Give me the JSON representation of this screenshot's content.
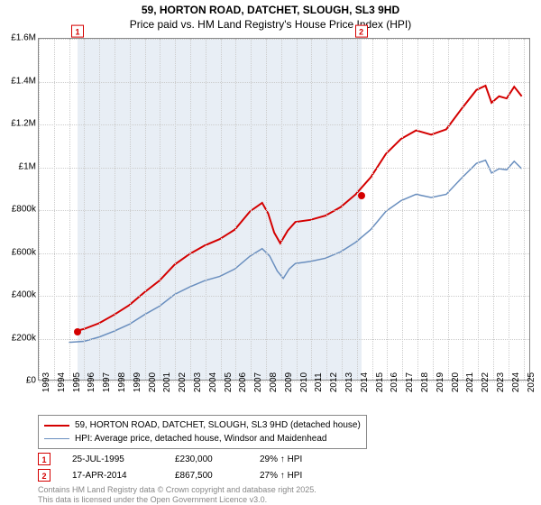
{
  "title": "59, HORTON ROAD, DATCHET, SLOUGH, SL3 9HD",
  "subtitle": "Price paid vs. HM Land Registry's House Price Index (HPI)",
  "chart": {
    "type": "line",
    "background_color": "#ffffff",
    "grid_color": "#cccccc",
    "border_color": "#888888",
    "shade_color": "#e8eef5",
    "x_years": [
      1993,
      1994,
      1995,
      1996,
      1997,
      1998,
      1999,
      2000,
      2001,
      2002,
      2003,
      2004,
      2005,
      2006,
      2007,
      2008,
      2009,
      2010,
      2011,
      2012,
      2013,
      2014,
      2015,
      2016,
      2017,
      2018,
      2019,
      2020,
      2021,
      2022,
      2023,
      2024,
      2025
    ],
    "x_min": 1993,
    "x_max": 2025.5,
    "y_min": 0,
    "y_max": 1600000,
    "y_ticks": [
      0,
      200000,
      400000,
      600000,
      800000,
      1000000,
      1200000,
      1400000,
      1600000
    ],
    "y_tick_labels": [
      "£0",
      "£200k",
      "£400k",
      "£600k",
      "£800k",
      "£1M",
      "£1.2M",
      "£1.4M",
      "£1.6M"
    ],
    "label_fontsize": 10,
    "title_fontsize": 12,
    "series": {
      "property": {
        "label": "59, HORTON ROAD, DATCHET, SLOUGH, SL3 9HD (detached house)",
        "color": "#d40000",
        "line_width": 2,
        "data": [
          [
            1995.56,
            230000
          ],
          [
            1996,
            238000
          ],
          [
            1997,
            265000
          ],
          [
            1998,
            305000
          ],
          [
            1999,
            350000
          ],
          [
            2000,
            410000
          ],
          [
            2001,
            465000
          ],
          [
            2002,
            540000
          ],
          [
            2003,
            590000
          ],
          [
            2004,
            630000
          ],
          [
            2005,
            660000
          ],
          [
            2006,
            705000
          ],
          [
            2007,
            790000
          ],
          [
            2007.8,
            830000
          ],
          [
            2008.2,
            780000
          ],
          [
            2008.6,
            690000
          ],
          [
            2009,
            640000
          ],
          [
            2009.5,
            700000
          ],
          [
            2010,
            740000
          ],
          [
            2011,
            750000
          ],
          [
            2012,
            770000
          ],
          [
            2013,
            810000
          ],
          [
            2014,
            870000
          ],
          [
            2015,
            950000
          ],
          [
            2016,
            1060000
          ],
          [
            2017,
            1130000
          ],
          [
            2018,
            1170000
          ],
          [
            2019,
            1150000
          ],
          [
            2020,
            1175000
          ],
          [
            2021,
            1270000
          ],
          [
            2022,
            1360000
          ],
          [
            2022.6,
            1380000
          ],
          [
            2023,
            1300000
          ],
          [
            2023.5,
            1330000
          ],
          [
            2024,
            1320000
          ],
          [
            2024.5,
            1375000
          ],
          [
            2025,
            1330000
          ]
        ]
      },
      "hpi": {
        "label": "HPI: Average price, detached house, Windsor and Maidenhead",
        "color": "#6a8fbf",
        "line_width": 1.5,
        "data": [
          [
            1995,
            175000
          ],
          [
            1996,
            180000
          ],
          [
            1997,
            200000
          ],
          [
            1998,
            228000
          ],
          [
            1999,
            260000
          ],
          [
            2000,
            305000
          ],
          [
            2001,
            345000
          ],
          [
            2002,
            400000
          ],
          [
            2003,
            435000
          ],
          [
            2004,
            465000
          ],
          [
            2005,
            485000
          ],
          [
            2006,
            520000
          ],
          [
            2007,
            580000
          ],
          [
            2007.8,
            615000
          ],
          [
            2008.3,
            580000
          ],
          [
            2008.8,
            510000
          ],
          [
            2009.2,
            475000
          ],
          [
            2009.6,
            520000
          ],
          [
            2010,
            545000
          ],
          [
            2011,
            555000
          ],
          [
            2012,
            570000
          ],
          [
            2013,
            600000
          ],
          [
            2014,
            645000
          ],
          [
            2015,
            705000
          ],
          [
            2016,
            790000
          ],
          [
            2017,
            840000
          ],
          [
            2018,
            870000
          ],
          [
            2019,
            855000
          ],
          [
            2020,
            870000
          ],
          [
            2021,
            945000
          ],
          [
            2022,
            1015000
          ],
          [
            2022.6,
            1030000
          ],
          [
            2023,
            970000
          ],
          [
            2023.5,
            990000
          ],
          [
            2024,
            985000
          ],
          [
            2024.5,
            1025000
          ],
          [
            2025,
            990000
          ]
        ]
      }
    },
    "shaded_region": {
      "x_start": 1995.56,
      "x_end": 2014.29
    },
    "sale_markers": [
      {
        "idx": "1",
        "x": 1995.56,
        "y": 230000,
        "color": "#d40000"
      },
      {
        "idx": "2",
        "x": 2014.29,
        "y": 867500,
        "color": "#d40000"
      }
    ]
  },
  "sales": [
    {
      "idx": "1",
      "date": "25-JUL-1995",
      "price": "£230,000",
      "delta": "29% ↑ HPI",
      "color": "#d40000"
    },
    {
      "idx": "2",
      "date": "17-APR-2014",
      "price": "£867,500",
      "delta": "27% ↑ HPI",
      "color": "#d40000"
    }
  ],
  "footer": {
    "line1": "Contains HM Land Registry data © Crown copyright and database right 2025.",
    "line2": "This data is licensed under the Open Government Licence v3.0."
  }
}
